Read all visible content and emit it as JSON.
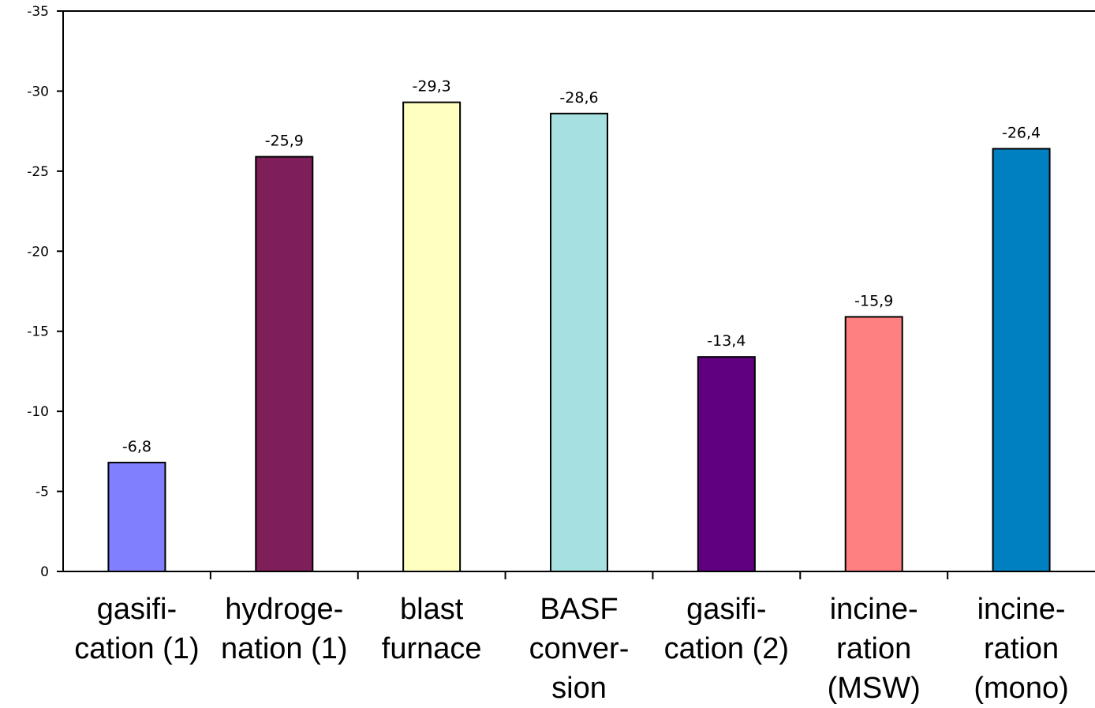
{
  "chart_data": {
    "type": "bar",
    "categories": [
      [
        "gasifi-",
        "cation (1)"
      ],
      [
        "hydroge-",
        "nation (1)"
      ],
      [
        "blast",
        "furnace"
      ],
      [
        "BASF",
        "conver-",
        "sion"
      ],
      [
        "gasifi-",
        "cation (2)"
      ],
      [
        "incine-",
        "ration",
        "(MSW)"
      ],
      [
        "incine-",
        "ration",
        "(mono)"
      ]
    ],
    "values": [
      -6.8,
      -25.9,
      -29.3,
      -28.6,
      -13.4,
      -15.9,
      -26.4
    ],
    "data_labels": [
      "-6,8",
      "-25,9",
      "-29,3",
      "-28,6",
      "-13,4",
      "-15,9",
      "-26,4"
    ],
    "colors": [
      "#8080ff",
      "#7f1f5a",
      "#ffffc0",
      "#a6e0e0",
      "#600080",
      "#ff8080",
      "#0080c0"
    ],
    "y_ticks": [
      0,
      -5,
      -10,
      -15,
      -20,
      -25,
      -30,
      -35
    ],
    "y_tick_labels": [
      "0",
      "-5",
      "-10",
      "-15",
      "-20",
      "-25",
      "-30",
      "-35"
    ],
    "ylim": [
      0,
      -35
    ],
    "title": "",
    "xlabel": "",
    "ylabel": "",
    "grid": false,
    "legend": "none"
  }
}
